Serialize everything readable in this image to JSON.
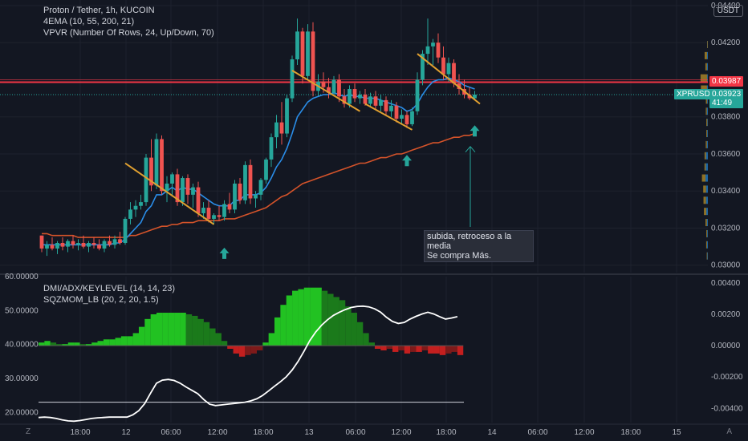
{
  "header": {
    "symbol_line": "Proton / Tether, 1h, KUCOIN",
    "ema_line": "4EMA (10, 55, 200, 21)",
    "vpvr_line": "VPVR (Number Of Rows, 24, Up/Down, 70)",
    "currency": "USDT"
  },
  "indicators": {
    "dmi_line": "DMI/ADX/KEYLEVEL (14, 14, 23)",
    "sqz_line": "SQZMOM_LB (20, 2, 20, 1.5)"
  },
  "annotation": {
    "line1": "subida, retroceso a la media",
    "line2": "Se compra Más."
  },
  "price_tags": {
    "red_level": "0.03987",
    "ticker": "XPRUSDT",
    "last_price": "0.03923",
    "countdown": "41:49",
    "red_color": "#f23645",
    "last_color": "#26a69a"
  },
  "bottom_corners": {
    "left": "Z",
    "right": "A"
  },
  "chart_data": [
    {
      "type": "candlestick",
      "x_axis_labels": [
        "18:00",
        "12",
        "06:00",
        "12:00",
        "18:00",
        "13",
        "06:00",
        "12:00",
        "18:00",
        "14",
        "06:00",
        "12:00",
        "18:00",
        "15"
      ],
      "y_ticks": [
        "0.04400",
        "0.04200",
        "0.04000",
        "0.03800",
        "0.03600",
        "0.03400",
        "0.03200",
        "0.03000"
      ],
      "ylim": [
        0.0296,
        0.0443
      ],
      "horizontal_line": 0.03987,
      "candles": [
        [
          0.0316,
          0.0316,
          0.0307,
          0.0309
        ],
        [
          0.0309,
          0.0313,
          0.0305,
          0.0311
        ],
        [
          0.0311,
          0.0315,
          0.0308,
          0.0309
        ],
        [
          0.0309,
          0.0313,
          0.0306,
          0.0312
        ],
        [
          0.0312,
          0.0315,
          0.0308,
          0.031
        ],
        [
          0.031,
          0.0314,
          0.0307,
          0.0313
        ],
        [
          0.0313,
          0.0316,
          0.0309,
          0.0311
        ],
        [
          0.0311,
          0.0314,
          0.0308,
          0.0312
        ],
        [
          0.0312,
          0.0316,
          0.0309,
          0.031
        ],
        [
          0.031,
          0.0313,
          0.0307,
          0.0312
        ],
        [
          0.0312,
          0.0315,
          0.0309,
          0.0311
        ],
        [
          0.0311,
          0.0314,
          0.0308,
          0.0309
        ],
        [
          0.0309,
          0.0314,
          0.0307,
          0.0313
        ],
        [
          0.0313,
          0.0316,
          0.031,
          0.0311
        ],
        [
          0.0311,
          0.0316,
          0.0309,
          0.0314
        ],
        [
          0.0314,
          0.0318,
          0.0311,
          0.0312
        ],
        [
          0.0312,
          0.0326,
          0.0311,
          0.0325
        ],
        [
          0.0325,
          0.0334,
          0.0322,
          0.033
        ],
        [
          0.033,
          0.0335,
          0.0326,
          0.0332
        ],
        [
          0.0332,
          0.0338,
          0.033,
          0.0334
        ],
        [
          0.0334,
          0.036,
          0.0332,
          0.0358
        ],
        [
          0.0358,
          0.0368,
          0.034,
          0.0343
        ],
        [
          0.0343,
          0.0371,
          0.0341,
          0.0368
        ],
        [
          0.0368,
          0.037,
          0.0338,
          0.034
        ],
        [
          0.034,
          0.0348,
          0.0334,
          0.0344
        ],
        [
          0.0344,
          0.035,
          0.0337,
          0.0349
        ],
        [
          0.0349,
          0.0352,
          0.0332,
          0.0334
        ],
        [
          0.0334,
          0.0348,
          0.0332,
          0.0347
        ],
        [
          0.0347,
          0.0349,
          0.0333,
          0.0338
        ],
        [
          0.0338,
          0.0344,
          0.0331,
          0.0342
        ],
        [
          0.0342,
          0.0345,
          0.0326,
          0.0328
        ],
        [
          0.0328,
          0.0334,
          0.0325,
          0.0331
        ],
        [
          0.0331,
          0.0335,
          0.0323,
          0.0325
        ],
        [
          0.0325,
          0.0328,
          0.0322,
          0.0327
        ],
        [
          0.0327,
          0.0332,
          0.0324,
          0.0326
        ],
        [
          0.0326,
          0.0335,
          0.0324,
          0.0333
        ],
        [
          0.0333,
          0.0339,
          0.0328,
          0.033
        ],
        [
          0.033,
          0.0346,
          0.0328,
          0.0344
        ],
        [
          0.0344,
          0.0347,
          0.0333,
          0.0335
        ],
        [
          0.0335,
          0.0356,
          0.0333,
          0.0354
        ],
        [
          0.0354,
          0.0357,
          0.0333,
          0.0336
        ],
        [
          0.0336,
          0.034,
          0.0331,
          0.0338
        ],
        [
          0.0338,
          0.0347,
          0.0335,
          0.0346
        ],
        [
          0.0346,
          0.0358,
          0.0344,
          0.0357
        ],
        [
          0.0357,
          0.0371,
          0.0353,
          0.0369
        ],
        [
          0.0369,
          0.0381,
          0.0363,
          0.0377
        ],
        [
          0.0377,
          0.0388,
          0.0365,
          0.0371
        ],
        [
          0.0371,
          0.0392,
          0.0369,
          0.039
        ],
        [
          0.039,
          0.0413,
          0.0388,
          0.0411
        ],
        [
          0.0411,
          0.0433,
          0.0408,
          0.0426
        ],
        [
          0.0426,
          0.0428,
          0.0398,
          0.0402
        ],
        [
          0.0402,
          0.043,
          0.04,
          0.0426
        ],
        [
          0.0426,
          0.0431,
          0.0391,
          0.0394
        ],
        [
          0.0394,
          0.0403,
          0.0391,
          0.0399
        ],
        [
          0.0399,
          0.0404,
          0.0393,
          0.0396
        ],
        [
          0.0396,
          0.0401,
          0.039,
          0.0393
        ],
        [
          0.0393,
          0.0402,
          0.0391,
          0.04
        ],
        [
          0.04,
          0.0403,
          0.0388,
          0.0391
        ],
        [
          0.0391,
          0.0395,
          0.0385,
          0.0387
        ],
        [
          0.0387,
          0.0397,
          0.0385,
          0.0395
        ],
        [
          0.0395,
          0.0398,
          0.0388,
          0.039
        ],
        [
          0.039,
          0.0394,
          0.0387,
          0.0392
        ],
        [
          0.0392,
          0.0395,
          0.0386,
          0.0387
        ],
        [
          0.0387,
          0.0393,
          0.0385,
          0.0391
        ],
        [
          0.0391,
          0.0394,
          0.0384,
          0.0386
        ],
        [
          0.0386,
          0.0392,
          0.0383,
          0.0389
        ],
        [
          0.0389,
          0.0391,
          0.0381,
          0.0383
        ],
        [
          0.0383,
          0.0389,
          0.038,
          0.0386
        ],
        [
          0.0386,
          0.0388,
          0.0377,
          0.0379
        ],
        [
          0.0379,
          0.0384,
          0.0376,
          0.0381
        ],
        [
          0.0381,
          0.0383,
          0.0374,
          0.0376
        ],
        [
          0.0376,
          0.0385,
          0.0375,
          0.0383
        ],
        [
          0.0383,
          0.0404,
          0.0381,
          0.04
        ],
        [
          0.04,
          0.0416,
          0.0397,
          0.0414
        ],
        [
          0.0414,
          0.0433,
          0.0408,
          0.0418
        ],
        [
          0.0418,
          0.0422,
          0.0408,
          0.042
        ],
        [
          0.042,
          0.0425,
          0.0409,
          0.0412
        ],
        [
          0.0412,
          0.0418,
          0.04,
          0.0403
        ],
        [
          0.0403,
          0.0412,
          0.0399,
          0.0409
        ],
        [
          0.0409,
          0.0411,
          0.0396,
          0.0398
        ],
        [
          0.0398,
          0.0403,
          0.0392,
          0.0395
        ],
        [
          0.0395,
          0.04,
          0.039,
          0.0392
        ],
        [
          0.0392,
          0.0396,
          0.0389,
          0.039
        ],
        [
          0.039,
          0.0394,
          0.0389,
          0.0392
        ]
      ],
      "ema_fast": [
        0.0311,
        0.0311,
        0.0311,
        0.0311,
        0.0311,
        0.0311,
        0.0311,
        0.0311,
        0.0311,
        0.0311,
        0.0311,
        0.0311,
        0.0311,
        0.0311,
        0.0312,
        0.0312,
        0.0314,
        0.0317,
        0.032,
        0.0323,
        0.0329,
        0.0332,
        0.0338,
        0.0338,
        0.034,
        0.0342,
        0.034,
        0.0342,
        0.0341,
        0.0341,
        0.0339,
        0.0337,
        0.0335,
        0.0333,
        0.0332,
        0.0332,
        0.0332,
        0.0335,
        0.0335,
        0.0338,
        0.0338,
        0.0338,
        0.0339,
        0.0342,
        0.0347,
        0.0353,
        0.0357,
        0.0363,
        0.0371,
        0.038,
        0.0384,
        0.0388,
        0.039,
        0.0391,
        0.0392,
        0.0392,
        0.0393,
        0.0392,
        0.0391,
        0.0392,
        0.0391,
        0.0391,
        0.039,
        0.039,
        0.039,
        0.0389,
        0.0388,
        0.0387,
        0.0386,
        0.0385,
        0.0383,
        0.0384,
        0.0387,
        0.0392,
        0.0396,
        0.0399,
        0.04,
        0.04,
        0.0401,
        0.04,
        0.0399,
        0.0397,
        0.0396,
        0.0395
      ],
      "ema_slow": [
        0.0317,
        0.0317,
        0.0316,
        0.0316,
        0.0316,
        0.0316,
        0.0316,
        0.0315,
        0.0315,
        0.0315,
        0.0315,
        0.0315,
        0.0315,
        0.0315,
        0.0315,
        0.0315,
        0.0315,
        0.0316,
        0.0316,
        0.0317,
        0.0318,
        0.0319,
        0.032,
        0.0321,
        0.0321,
        0.0322,
        0.0322,
        0.0323,
        0.0323,
        0.0323,
        0.0324,
        0.0324,
        0.0324,
        0.0324,
        0.0324,
        0.0325,
        0.0325,
        0.0325,
        0.0326,
        0.0327,
        0.0328,
        0.0329,
        0.033,
        0.0331,
        0.0333,
        0.0335,
        0.0337,
        0.0338,
        0.034,
        0.0342,
        0.0344,
        0.0345,
        0.0346,
        0.0347,
        0.0348,
        0.0349,
        0.035,
        0.0351,
        0.0352,
        0.0353,
        0.0354,
        0.0355,
        0.0355,
        0.0356,
        0.0357,
        0.0358,
        0.0358,
        0.0359,
        0.036,
        0.036,
        0.0361,
        0.0362,
        0.0363,
        0.0364,
        0.0365,
        0.0366,
        0.0366,
        0.0367,
        0.0368,
        0.0369,
        0.0369,
        0.037,
        0.037,
        0.0371
      ],
      "volume_profile": [
        {
          "price": 0.0419,
          "up": 0.0003,
          "down": 0.0008
        },
        {
          "price": 0.0413,
          "up": 0.0012,
          "down": 0.0034
        },
        {
          "price": 0.0407,
          "up": 0.0013,
          "down": 0.0022
        },
        {
          "price": 0.0401,
          "up": 0.001,
          "down": 0.0094
        },
        {
          "price": 0.0395,
          "up": 0.0012,
          "down": 0.0087
        },
        {
          "price": 0.0389,
          "up": 0.001,
          "down": 0.0018
        },
        {
          "price": 0.0383,
          "up": 0.0014,
          "down": 0.0015
        },
        {
          "price": 0.0377,
          "up": 0.0008,
          "down": 0.0014
        },
        {
          "price": 0.0371,
          "up": 0.001,
          "down": 0.0012
        },
        {
          "price": 0.0365,
          "up": 0.0014,
          "down": 0.0016
        },
        {
          "price": 0.0359,
          "up": 0.0027,
          "down": 0.002
        },
        {
          "price": 0.0353,
          "up": 0.003,
          "down": 0.0018
        },
        {
          "price": 0.0347,
          "up": 0.0034,
          "down": 0.005
        },
        {
          "price": 0.0341,
          "up": 0.0026,
          "down": 0.004
        },
        {
          "price": 0.0335,
          "up": 0.0026,
          "down": 0.0036
        },
        {
          "price": 0.0329,
          "up": 0.0022,
          "down": 0.0034
        },
        {
          "price": 0.0323,
          "up": 0.0014,
          "down": 0.002
        },
        {
          "price": 0.0317,
          "up": 0.001,
          "down": 0.0012
        },
        {
          "price": 0.0311,
          "up": 0.0012,
          "down": 0.0012
        },
        {
          "price": 0.0305,
          "up": 0.0008,
          "down": 0.0008
        }
      ],
      "trendlines": [
        {
          "from": [
            16,
            0.0355
          ],
          "to": [
            33,
            0.0322
          ]
        },
        {
          "from": [
            48,
            0.0405
          ],
          "to": [
            61,
            0.0383
          ]
        },
        {
          "from": [
            62,
            0.0387
          ],
          "to": [
            71,
            0.0373
          ]
        },
        {
          "from": [
            72,
            0.0414
          ],
          "to": [
            84,
            0.0387
          ]
        }
      ],
      "up_arrows": [
        {
          "index": 35,
          "price": 0.0306
        },
        {
          "index": 70,
          "price": 0.0356
        },
        {
          "index": 83,
          "price": 0.0372
        }
      ]
    },
    {
      "type": "area",
      "left_y_ticks": [
        "60.00000",
        "50.00000",
        "40.00000",
        "30.00000",
        "20.00000"
      ],
      "right_y_ticks": [
        "0.00400",
        "0.00200",
        "0.00000",
        "-0.00200",
        "-0.00400"
      ],
      "left_ylim": [
        17,
        60
      ],
      "right_ylim": [
        -0.0049,
        0.0044
      ],
      "keylevel": 23,
      "adx": [
        18.5,
        18.6,
        18.5,
        18.2,
        17.8,
        17.5,
        17.4,
        17.6,
        17.9,
        18.2,
        18.4,
        18.5,
        18.6,
        18.6,
        18.6,
        18.6,
        19.3,
        20.5,
        22.6,
        25.7,
        28.6,
        29.5,
        29.7,
        29.4,
        28.6,
        27.5,
        26.5,
        25.5,
        23.8,
        22.4,
        22.0,
        22.2,
        22.4,
        22.6,
        22.8,
        23.0,
        23.4,
        24.0,
        25.0,
        26.3,
        27.7,
        29.0,
        30.5,
        32.5,
        35.0,
        38.0,
        41.2,
        43.7,
        45.7,
        47.3,
        48.6,
        49.5,
        50.3,
        50.9,
        51.2,
        51.3,
        51.1,
        50.5,
        49.5,
        48.0,
        46.8,
        46.2,
        46.5,
        47.5,
        48.3,
        49.0,
        49.5,
        49.0,
        48.2,
        47.5,
        47.8,
        48.2
      ],
      "momentum": [
        0.0002,
        0.0003,
        0.0002,
        0.0001,
        0.0001,
        0.0002,
        0.0002,
        0.0001,
        0.0001,
        0.0002,
        0.0003,
        0.0004,
        0.0004,
        0.0005,
        0.0006,
        0.0006,
        0.0008,
        0.0012,
        0.0017,
        0.002,
        0.0021,
        0.0021,
        0.0021,
        0.0021,
        0.0021,
        0.002,
        0.0019,
        0.0017,
        0.0015,
        0.0011,
        0.0008,
        0.0003,
        -0.0002,
        -0.0005,
        -0.0007,
        -0.0006,
        -0.0005,
        -0.0003,
        0.0002,
        0.0008,
        0.0018,
        0.0026,
        0.0032,
        0.0035,
        0.0036,
        0.0037,
        0.0037,
        0.0037,
        0.0035,
        0.0033,
        0.0031,
        0.0029,
        0.0025,
        0.0021,
        0.0015,
        0.0008,
        0.0002,
        -0.0002,
        -0.0003,
        -0.0002,
        -0.0004,
        -0.0003,
        -0.0005,
        -0.0004,
        -0.0004,
        -0.0003,
        -0.0005,
        -0.0005,
        -0.0006,
        -0.0005,
        -0.0004,
        -0.0006
      ]
    }
  ]
}
